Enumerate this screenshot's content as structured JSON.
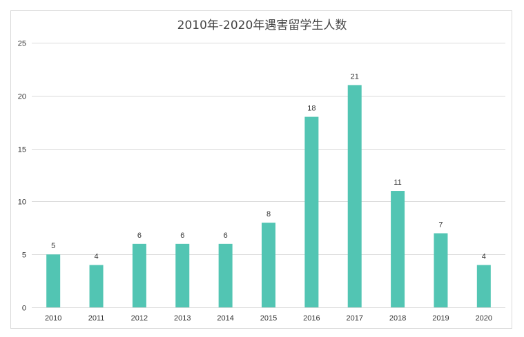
{
  "chart_data": {
    "type": "bar",
    "title": "2010年-2020年遇害留学生人数",
    "xlabel": "",
    "ylabel": "",
    "categories": [
      "2010",
      "2011",
      "2012",
      "2013",
      "2014",
      "2015",
      "2016",
      "2017",
      "2018",
      "2019",
      "2020"
    ],
    "values": [
      5,
      4,
      6,
      6,
      6,
      8,
      18,
      21,
      11,
      7,
      4
    ],
    "ylim": [
      0,
      25
    ],
    "yticks": [
      0,
      5,
      10,
      15,
      20,
      25
    ],
    "data_labels": [
      "5",
      "4",
      "6",
      "6",
      "6",
      "8",
      "18",
      "21",
      "11",
      "7",
      "4"
    ],
    "grid": true,
    "legend": "none",
    "bar_color": "#52c5b3",
    "grid_color": "#d9d9d9"
  }
}
